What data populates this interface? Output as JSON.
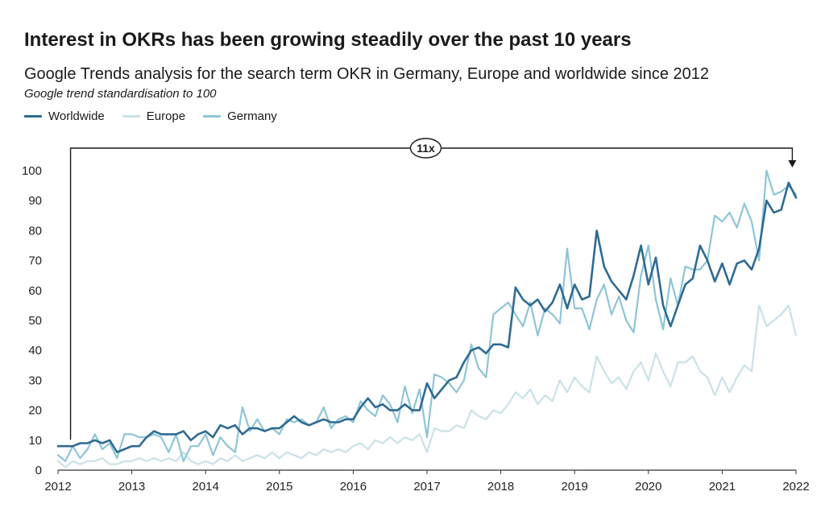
{
  "title": "Interest in OKRs has been growing steadily over the past 10 years",
  "subtitle": "Google Trends analysis for the search term OKR in Germany, Europe and worldwide since 2012",
  "note": "Google trend standardisation to 100",
  "annotation": "11x",
  "chart_data": {
    "type": "line",
    "title": "Interest in OKRs has been growing steadily over the past 10 years",
    "subtitle": "Google Trends analysis for the search term OKR in Germany, Europe and worldwide since 2012",
    "ylabel": "",
    "xlabel": "",
    "xlim": [
      2012,
      2022
    ],
    "ylim": [
      0,
      100
    ],
    "x_ticks": [
      "2012",
      "2013",
      "2014",
      "2015",
      "2016",
      "2017",
      "2018",
      "2019",
      "2020",
      "2021",
      "2022"
    ],
    "y_ticks": [
      0,
      10,
      20,
      30,
      40,
      50,
      60,
      70,
      80,
      90,
      100
    ],
    "grid": false,
    "legend_position": "top-left",
    "series": [
      {
        "name": "Worldwide",
        "color": "#2e6b93",
        "x": [
          2012.0,
          2012.1,
          2012.2,
          2012.3,
          2012.4,
          2012.5,
          2012.6,
          2012.7,
          2012.8,
          2012.9,
          2013.0,
          2013.1,
          2013.2,
          2013.3,
          2013.4,
          2013.5,
          2013.6,
          2013.7,
          2013.8,
          2013.9,
          2014.0,
          2014.1,
          2014.2,
          2014.3,
          2014.4,
          2014.5,
          2014.6,
          2014.7,
          2014.8,
          2014.9,
          2015.0,
          2015.1,
          2015.2,
          2015.3,
          2015.4,
          2015.5,
          2015.6,
          2015.7,
          2015.8,
          2015.9,
          2016.0,
          2016.1,
          2016.2,
          2016.3,
          2016.4,
          2016.5,
          2016.6,
          2016.7,
          2016.8,
          2016.9,
          2017.0,
          2017.1,
          2017.2,
          2017.3,
          2017.4,
          2017.5,
          2017.6,
          2017.7,
          2017.8,
          2017.9,
          2018.0,
          2018.1,
          2018.2,
          2018.3,
          2018.4,
          2018.5,
          2018.6,
          2018.7,
          2018.8,
          2018.9,
          2019.0,
          2019.1,
          2019.2,
          2019.3,
          2019.4,
          2019.5,
          2019.6,
          2019.7,
          2019.8,
          2019.9,
          2020.0,
          2020.1,
          2020.2,
          2020.3,
          2020.4,
          2020.5,
          2020.6,
          2020.7,
          2020.8,
          2020.9,
          2021.0,
          2021.1,
          2021.2,
          2021.3,
          2021.4,
          2021.5,
          2021.6,
          2021.7,
          2021.8,
          2021.9,
          2022.0
        ],
        "values": [
          8,
          8,
          8,
          9,
          9,
          10,
          9,
          10,
          6,
          7,
          8,
          8,
          11,
          13,
          12,
          12,
          12,
          13,
          10,
          12,
          13,
          11,
          15,
          14,
          15,
          12,
          14,
          14,
          13,
          14,
          14,
          16,
          18,
          16,
          15,
          16,
          17,
          16,
          16,
          17,
          17,
          21,
          24,
          21,
          22,
          20,
          20,
          22,
          20,
          20,
          29,
          24,
          27,
          30,
          31,
          36,
          40,
          41,
          39,
          42,
          42,
          41,
          61,
          57,
          55,
          57,
          53,
          56,
          62,
          54,
          62,
          57,
          58,
          80,
          68,
          63,
          60,
          57,
          65,
          75,
          62,
          71,
          55,
          48,
          55,
          62,
          64,
          75,
          70,
          63,
          69,
          62,
          69,
          70,
          67,
          74,
          90,
          86,
          87,
          96,
          91
        ]
      },
      {
        "name": "Europe",
        "color": "#c9e2e8",
        "x": [
          2012.0,
          2012.1,
          2012.2,
          2012.3,
          2012.4,
          2012.5,
          2012.6,
          2012.7,
          2012.8,
          2012.9,
          2013.0,
          2013.1,
          2013.2,
          2013.3,
          2013.4,
          2013.5,
          2013.6,
          2013.7,
          2013.8,
          2013.9,
          2014.0,
          2014.1,
          2014.2,
          2014.3,
          2014.4,
          2014.5,
          2014.6,
          2014.7,
          2014.8,
          2014.9,
          2015.0,
          2015.1,
          2015.2,
          2015.3,
          2015.4,
          2015.5,
          2015.6,
          2015.7,
          2015.8,
          2015.9,
          2016.0,
          2016.1,
          2016.2,
          2016.3,
          2016.4,
          2016.5,
          2016.6,
          2016.7,
          2016.8,
          2016.9,
          2017.0,
          2017.1,
          2017.2,
          2017.3,
          2017.4,
          2017.5,
          2017.6,
          2017.7,
          2017.8,
          2017.9,
          2018.0,
          2018.1,
          2018.2,
          2018.3,
          2018.4,
          2018.5,
          2018.6,
          2018.7,
          2018.8,
          2018.9,
          2019.0,
          2019.1,
          2019.2,
          2019.3,
          2019.4,
          2019.5,
          2019.6,
          2019.7,
          2019.8,
          2019.9,
          2020.0,
          2020.1,
          2020.2,
          2020.3,
          2020.4,
          2020.5,
          2020.6,
          2020.7,
          2020.8,
          2020.9,
          2021.0,
          2021.1,
          2021.2,
          2021.3,
          2021.4,
          2021.5,
          2021.6,
          2021.7,
          2021.8,
          2021.9,
          2022.0
        ],
        "values": [
          3,
          1,
          3,
          2,
          3,
          3,
          4,
          2,
          2,
          3,
          3,
          4,
          3,
          4,
          3,
          4,
          3,
          6,
          3,
          2,
          3,
          2,
          4,
          3,
          5,
          3,
          4,
          5,
          4,
          6,
          4,
          6,
          5,
          4,
          6,
          5,
          7,
          6,
          7,
          6,
          8,
          9,
          7,
          10,
          9,
          11,
          9,
          11,
          10,
          12,
          6,
          14,
          13,
          13,
          15,
          14,
          20,
          18,
          17,
          20,
          19,
          22,
          26,
          24,
          27,
          22,
          25,
          23,
          30,
          26,
          31,
          28,
          26,
          38,
          33,
          29,
          31,
          27,
          33,
          36,
          30,
          39,
          33,
          28,
          36,
          36,
          38,
          33,
          31,
          25,
          31,
          26,
          31,
          35,
          33,
          55,
          48,
          50,
          52,
          55,
          45
        ]
      },
      {
        "name": "Germany",
        "color": "#8ec5d6",
        "x": [
          2012.0,
          2012.1,
          2012.2,
          2012.3,
          2012.4,
          2012.5,
          2012.6,
          2012.7,
          2012.8,
          2012.9,
          2013.0,
          2013.1,
          2013.2,
          2013.3,
          2013.4,
          2013.5,
          2013.6,
          2013.7,
          2013.8,
          2013.9,
          2014.0,
          2014.1,
          2014.2,
          2014.3,
          2014.4,
          2014.5,
          2014.6,
          2014.7,
          2014.8,
          2014.9,
          2015.0,
          2015.1,
          2015.2,
          2015.3,
          2015.4,
          2015.5,
          2015.6,
          2015.7,
          2015.8,
          2015.9,
          2016.0,
          2016.1,
          2016.2,
          2016.3,
          2016.4,
          2016.5,
          2016.6,
          2016.7,
          2016.8,
          2016.9,
          2017.0,
          2017.1,
          2017.2,
          2017.3,
          2017.4,
          2017.5,
          2017.6,
          2017.7,
          2017.8,
          2017.9,
          2018.0,
          2018.1,
          2018.2,
          2018.3,
          2018.4,
          2018.5,
          2018.6,
          2018.7,
          2018.8,
          2018.9,
          2019.0,
          2019.1,
          2019.2,
          2019.3,
          2019.4,
          2019.5,
          2019.6,
          2019.7,
          2019.8,
          2019.9,
          2020.0,
          2020.1,
          2020.2,
          2020.3,
          2020.4,
          2020.5,
          2020.6,
          2020.7,
          2020.8,
          2020.9,
          2021.0,
          2021.1,
          2021.2,
          2021.3,
          2021.4,
          2021.5,
          2021.6,
          2021.7,
          2021.8,
          2021.9,
          2022.0
        ],
        "values": [
          5,
          3,
          8,
          4,
          7,
          12,
          7,
          9,
          4,
          12,
          12,
          11,
          11,
          12,
          11,
          6,
          12,
          3,
          8,
          8,
          12,
          5,
          11,
          8,
          6,
          21,
          13,
          17,
          13,
          14,
          12,
          17,
          16,
          17,
          15,
          16,
          21,
          14,
          17,
          18,
          16,
          23,
          20,
          18,
          25,
          22,
          16,
          28,
          19,
          27,
          11,
          32,
          31,
          29,
          26,
          30,
          42,
          34,
          31,
          52,
          54,
          56,
          52,
          48,
          56,
          45,
          54,
          52,
          49,
          74,
          54,
          54,
          47,
          57,
          62,
          52,
          58,
          50,
          46,
          65,
          75,
          57,
          47,
          64,
          55,
          68,
          67,
          67,
          70,
          85,
          83,
          86,
          81,
          89,
          83,
          70,
          100,
          92,
          93,
          95,
          92
        ]
      }
    ]
  }
}
